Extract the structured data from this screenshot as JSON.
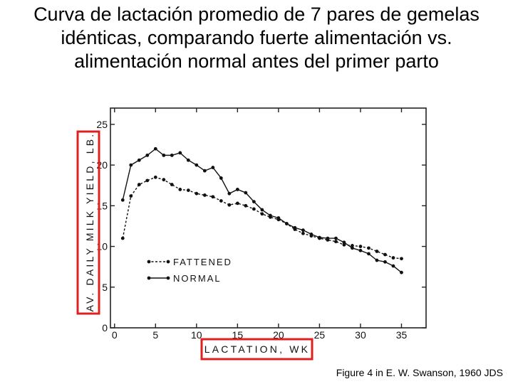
{
  "title_lines": [
    "Curva de lactación promedio de 7 pares de gemelas",
    "idénticas, comparando fuerte alimentación vs.",
    "alimentación normal antes del primer parto"
  ],
  "caption": "Figure 4 in E. W. Swanson, 1960 JDS",
  "highlight_color": "#e0201e",
  "chart_data": {
    "type": "line",
    "xlabel": "LACTATION, WK",
    "ylabel": "AV. DAILY MILK YIELD, LB.",
    "xlim": [
      -0.5,
      38
    ],
    "ylim": [
      0,
      27
    ],
    "xticks": [
      0,
      5,
      10,
      15,
      20,
      25,
      30,
      35
    ],
    "yticks": [
      0,
      5,
      10,
      15,
      20,
      25
    ],
    "grid": false,
    "legend_position": "center-left",
    "series": [
      {
        "name": "FATTENED",
        "style": "dashed",
        "x": [
          1,
          2,
          3,
          4,
          5,
          6,
          7,
          8,
          9,
          10,
          11,
          12,
          13,
          14,
          15,
          16,
          17,
          18,
          19,
          20,
          21,
          22,
          23,
          24,
          25,
          26,
          27,
          28,
          29,
          30,
          31,
          32,
          33,
          34,
          35
        ],
        "y": [
          11,
          16.2,
          17.6,
          18.1,
          18.5,
          18.2,
          17.6,
          17,
          16.9,
          16.5,
          16.3,
          16.1,
          15.6,
          15.1,
          15.3,
          15,
          14.6,
          14,
          13.6,
          13.3,
          12.8,
          12.1,
          11.6,
          11.3,
          11,
          10.8,
          10.6,
          10.2,
          10.1,
          10,
          9.8,
          9.4,
          9,
          8.6,
          8.5
        ]
      },
      {
        "name": "NORMAL",
        "style": "solid",
        "x": [
          1,
          2,
          3,
          4,
          5,
          6,
          7,
          8,
          9,
          10,
          11,
          12,
          13,
          14,
          15,
          16,
          17,
          18,
          19,
          20,
          21,
          22,
          23,
          24,
          25,
          26,
          27,
          28,
          29,
          30,
          31,
          32,
          33,
          34,
          35
        ],
        "y": [
          15.7,
          20,
          20.6,
          21.2,
          22,
          21.2,
          21.2,
          21.5,
          20.6,
          20,
          19.3,
          19.7,
          18.4,
          16.5,
          17,
          16.6,
          15.5,
          14.5,
          13.8,
          13.5,
          12.8,
          12.3,
          12,
          11.5,
          11.1,
          11,
          11,
          10.5,
          9.8,
          9.5,
          9.1,
          8.3,
          8.1,
          7.6,
          6.8
        ]
      }
    ]
  }
}
